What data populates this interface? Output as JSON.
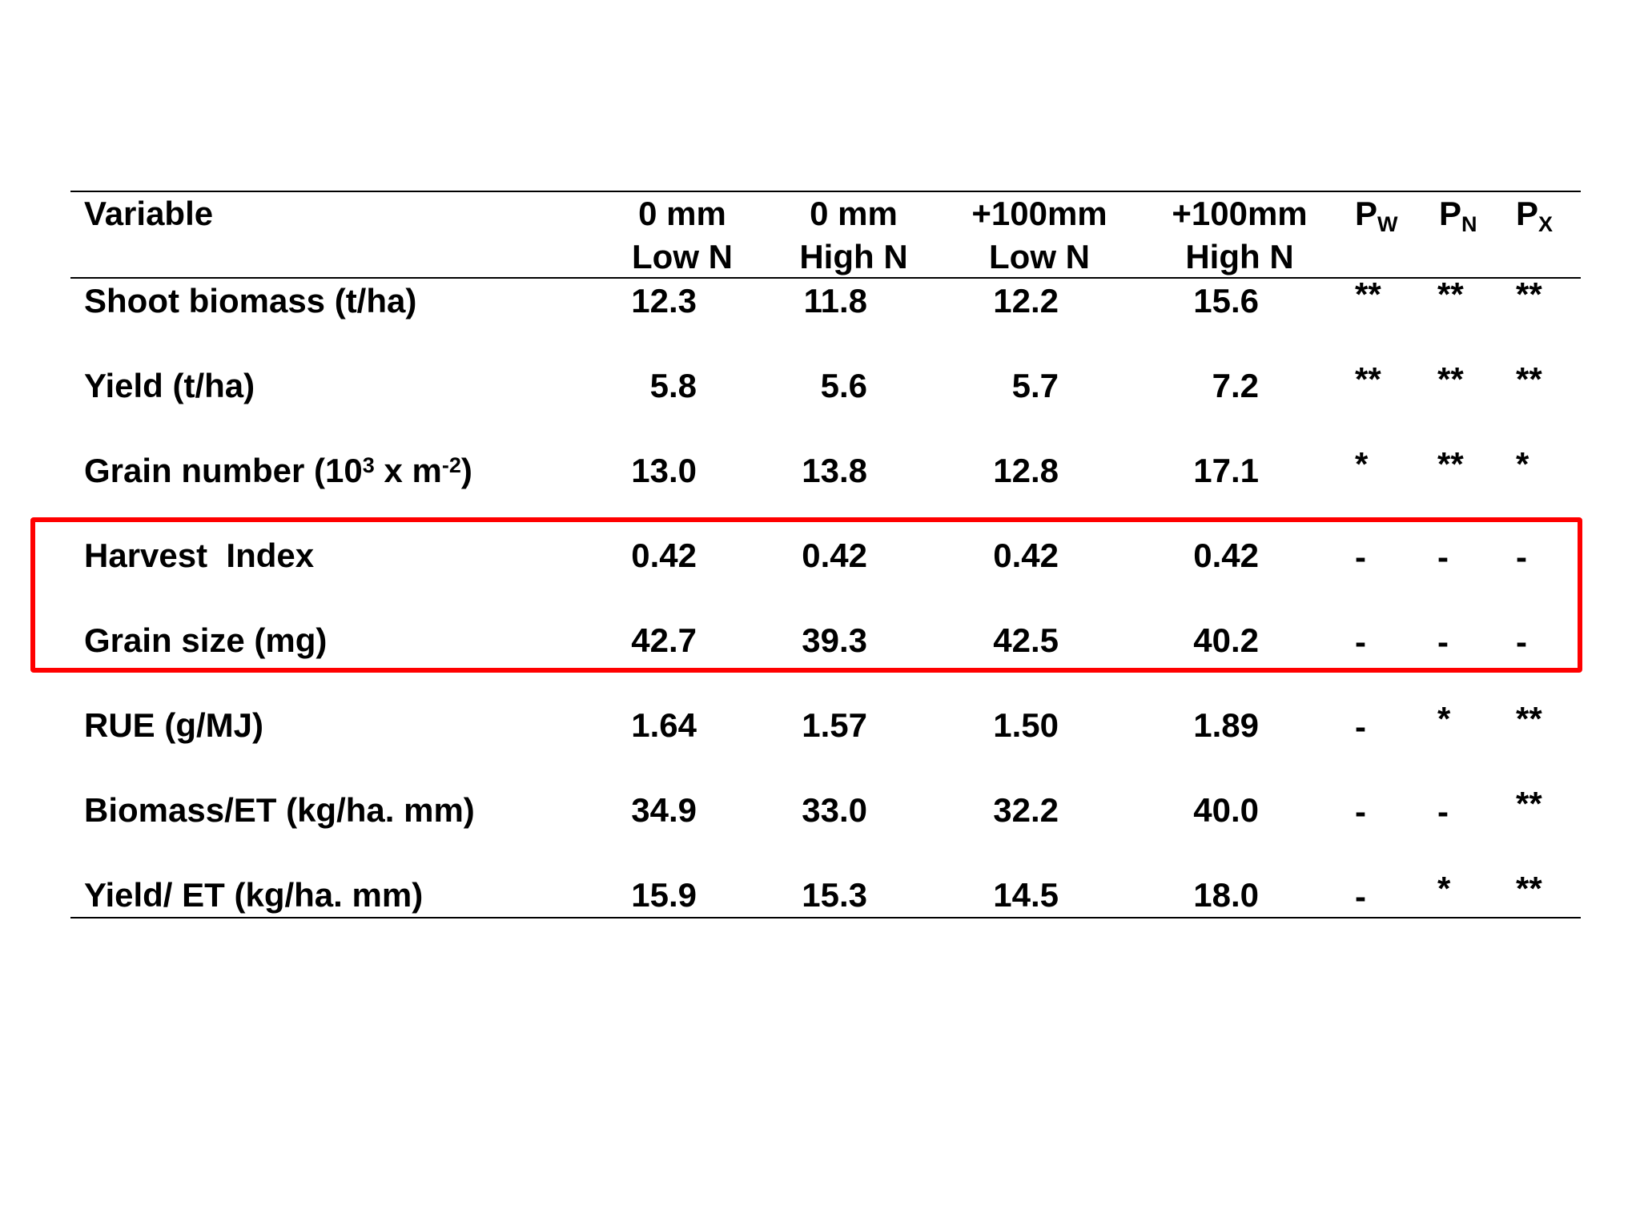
{
  "table": {
    "headers": {
      "variable": "Variable",
      "columns": [
        {
          "line1": "0 mm",
          "line2": "Low N"
        },
        {
          "line1": "0 mm",
          "line2": "High N"
        },
        {
          "line1": "+100mm",
          "line2": "Low N"
        },
        {
          "line1": "+100mm",
          "line2": "High N"
        }
      ],
      "p_columns": [
        {
          "main": "P",
          "sub": "W"
        },
        {
          "main": "P",
          "sub": "N"
        },
        {
          "main": "P",
          "sub": "X"
        }
      ]
    },
    "rows": [
      {
        "label": "Shoot biomass (t/ha)",
        "values": [
          "12.3",
          "11.8",
          "12.2",
          "15.6"
        ],
        "p": [
          "**",
          "**",
          "**"
        ]
      },
      {
        "label": "Yield (t/ha)",
        "values": [
          "5.8",
          "5.6",
          "5.7",
          "7.2"
        ],
        "p": [
          "**",
          "**",
          "**"
        ]
      },
      {
        "label_parts": [
          "Grain number (10",
          "3",
          " x m",
          "-2",
          ")"
        ],
        "values": [
          "13.0",
          "13.8",
          "12.8",
          "17.1"
        ],
        "p": [
          "*",
          "**",
          "*"
        ]
      },
      {
        "label": "Harvest  Index",
        "values": [
          "0.42",
          "0.42",
          "0.42",
          "0.42"
        ],
        "p": [
          "-",
          "-",
          "-"
        ]
      },
      {
        "label": "Grain size (mg)",
        "values": [
          "42.7",
          "39.3",
          "42.5",
          "40.2"
        ],
        "p": [
          "-",
          "-",
          "-"
        ]
      },
      {
        "label": "RUE (g/MJ)",
        "values": [
          "1.64",
          "1.57",
          "1.50",
          "1.89"
        ],
        "p": [
          "-",
          "*",
          "**"
        ]
      },
      {
        "label": "Biomass/ET (kg/ha. mm)",
        "values": [
          "34.9",
          "33.0",
          "32.2",
          "40.0"
        ],
        "p": [
          "-",
          "-",
          "**"
        ]
      },
      {
        "label": "Yield/ ET (kg/ha. mm)",
        "values": [
          "15.9",
          "15.3",
          "14.5",
          "18.0"
        ],
        "p": [
          "-",
          "*",
          "**"
        ]
      }
    ],
    "highlight_color": "#ff0000",
    "highlighted_rows": [
      "Harvest  Index",
      "Grain size (mg)"
    ]
  }
}
